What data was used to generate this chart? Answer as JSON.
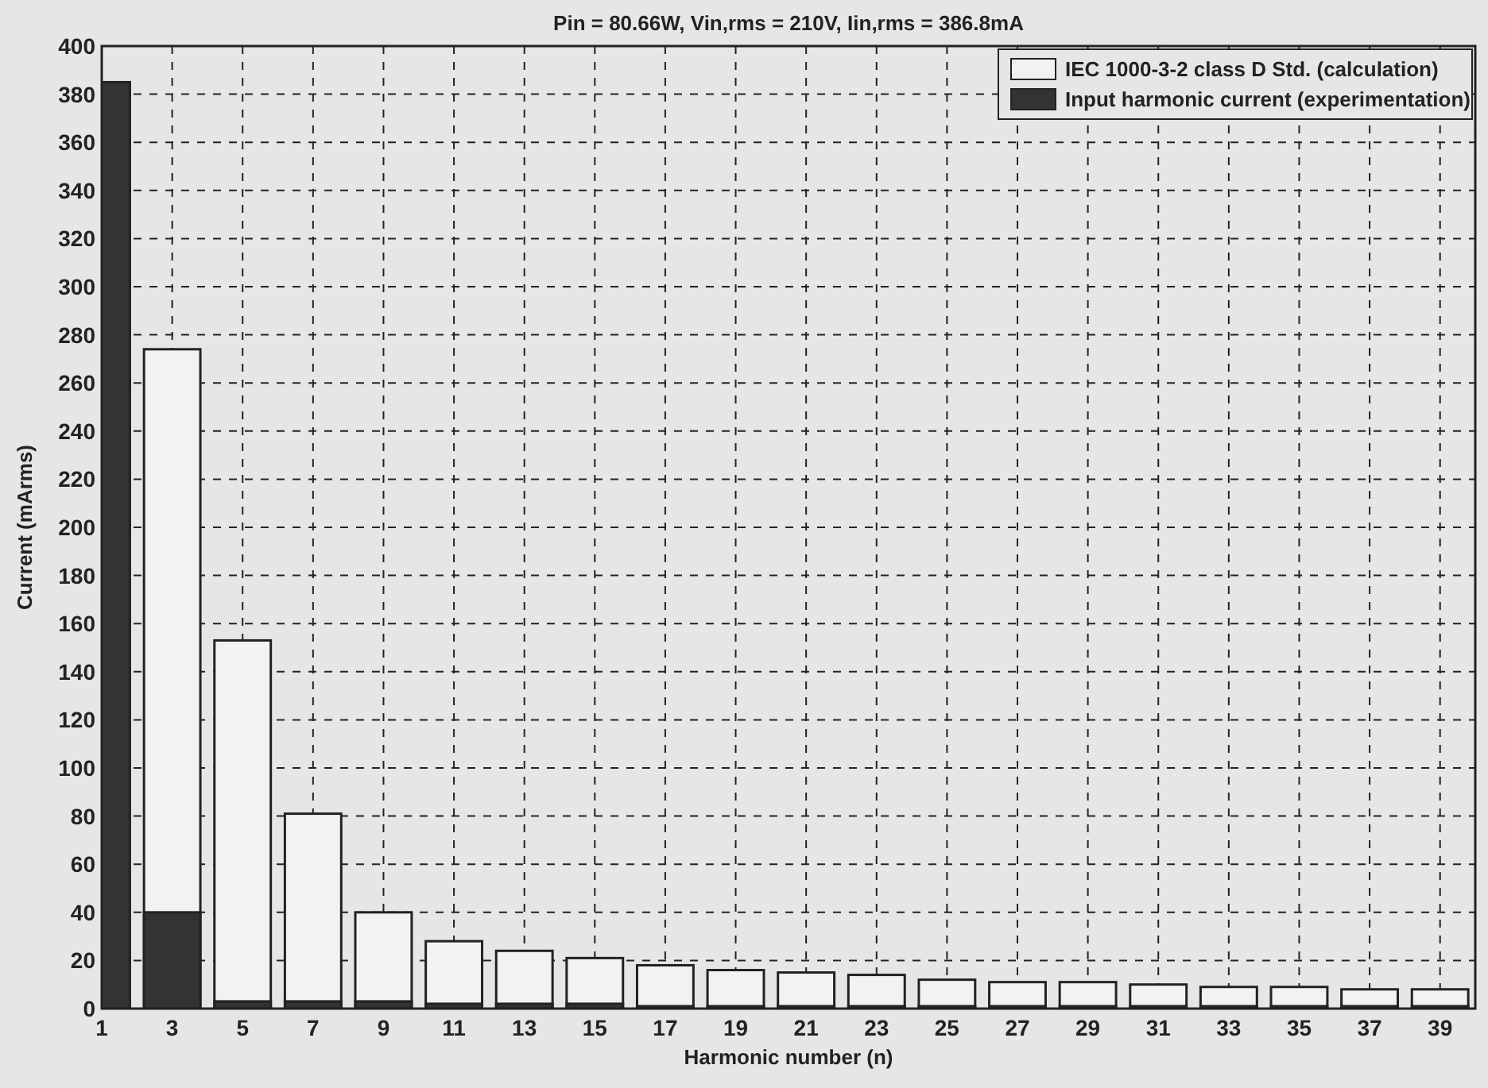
{
  "chart_data": {
    "type": "bar",
    "title": "Pin = 80.66W, Vin,rms = 210V, Iin,rms = 386.8mA",
    "xlabel": "Harmonic number (n)",
    "ylabel": "Current (mArms)",
    "x": [
      1,
      3,
      5,
      7,
      9,
      11,
      13,
      15,
      17,
      19,
      21,
      23,
      25,
      27,
      29,
      31,
      33,
      35,
      37,
      39
    ],
    "series": [
      {
        "name": "IEC 1000-3-2 class D Std. (calculation)",
        "color": "#f2f2f2",
        "values": [
          null,
          274,
          153,
          81,
          40,
          28,
          24,
          21,
          18,
          16,
          15,
          14,
          12,
          11,
          11,
          10,
          9,
          9,
          8,
          8
        ]
      },
      {
        "name": "Input harmonic current (experimentation)",
        "color": "#333333",
        "values": [
          385,
          40,
          3,
          3,
          3,
          2,
          2,
          2,
          1,
          1,
          1,
          1,
          1,
          1,
          1,
          1,
          1,
          1,
          1,
          1
        ]
      }
    ],
    "xlim": [
      1,
      40
    ],
    "xticks": [
      1,
      3,
      5,
      7,
      9,
      11,
      13,
      15,
      17,
      19,
      21,
      23,
      25,
      27,
      29,
      31,
      33,
      35,
      37,
      39
    ],
    "ylim": [
      0,
      400
    ],
    "yticks": [
      0,
      20,
      40,
      60,
      80,
      100,
      120,
      140,
      160,
      180,
      200,
      220,
      240,
      260,
      280,
      300,
      320,
      340,
      360,
      380,
      400
    ],
    "grid": true,
    "legend": "top right"
  }
}
